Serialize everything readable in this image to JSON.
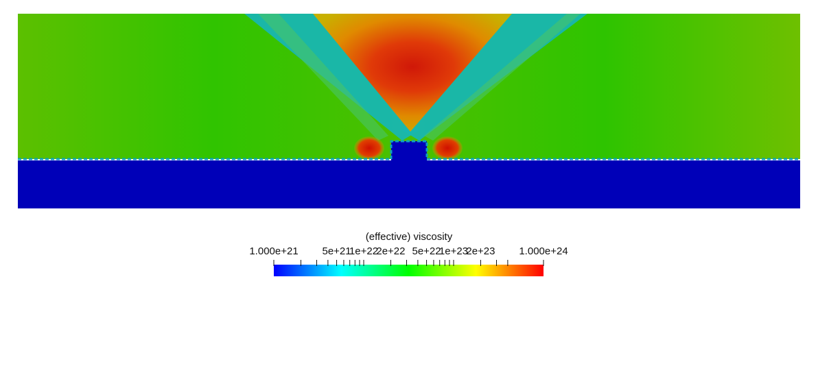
{
  "colorbar": {
    "title": "(effective) viscosity",
    "scale": "log",
    "range": [
      1e+21,
      1e+24
    ],
    "labels": [
      "1.000e+21",
      "5e+21",
      "1e+22",
      "2e+22",
      "5e+22",
      "1e+23",
      "2e+23",
      "1.000e+24"
    ],
    "label_values": [
      1e+21,
      5e+21,
      1e+22,
      2e+22,
      5e+22,
      1e+23,
      2e+23,
      1e+24
    ],
    "tick_values": [
      1e+21,
      2e+21,
      3e+21,
      4e+21,
      5e+21,
      6e+21,
      7e+21,
      8e+21,
      9e+21,
      1e+22,
      2e+22,
      3e+22,
      4e+22,
      5e+22,
      6e+22,
      7e+22,
      8e+22,
      9e+22,
      1e+23,
      2e+23,
      3e+23,
      4e+23,
      1e+24
    ],
    "colormap": [
      "#0000ff",
      "#00ffff",
      "#00ff00",
      "#ffff00",
      "#ff0000"
    ]
  },
  "field": {
    "description_colors": {
      "lower_layer": "#0000b8",
      "upper_layer": "#2ec400",
      "shear_bands": "#19b6b0",
      "wedge_peak": "#d81a0a"
    }
  }
}
